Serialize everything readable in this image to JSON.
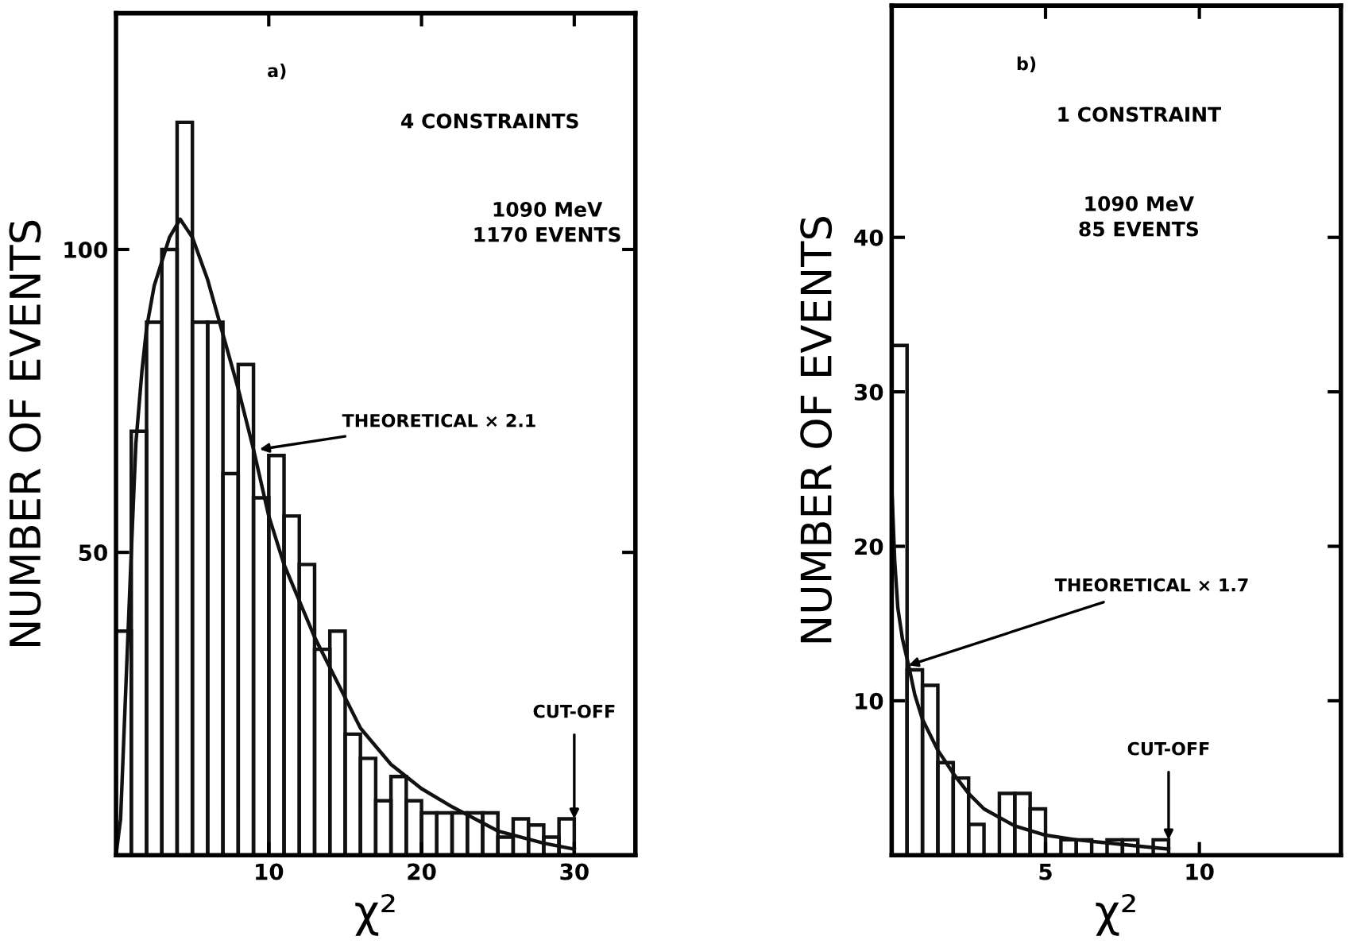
{
  "chart_data": [
    {
      "type": "histogram",
      "title": "a)",
      "xlabel": "χ²",
      "ylabel": "NUMBER OF EVENTS",
      "bins": [
        0,
        1,
        2,
        3,
        4,
        5,
        6,
        7,
        8,
        9,
        10,
        11,
        12,
        13,
        14,
        15,
        16,
        17,
        18,
        19,
        20,
        21,
        22,
        23,
        24,
        25,
        26,
        27,
        28,
        29,
        30
      ],
      "values": [
        37,
        70,
        88,
        100,
        121,
        88,
        88,
        63,
        81,
        59,
        66,
        56,
        48,
        34,
        37,
        20,
        16,
        9,
        13,
        9,
        7,
        7,
        7,
        7,
        7,
        3,
        6,
        5,
        3,
        6
      ],
      "color": "#111111",
      "series": [
        {
          "type": "line",
          "color": "#111111",
          "x": [
            0,
            0.3,
            0.6,
            1,
            1.3,
            1.7,
            2,
            2.5,
            3,
            3.5,
            4.2,
            5,
            6,
            7,
            8,
            9,
            10,
            11,
            12,
            13,
            14,
            15,
            16,
            18,
            20,
            22,
            25,
            28,
            30
          ],
          "values": [
            0,
            6,
            25,
            50,
            68,
            80,
            87,
            94,
            98,
            102,
            105,
            102,
            95,
            86,
            77,
            67,
            56,
            48,
            42,
            36,
            31,
            26,
            21,
            15,
            11,
            8,
            4,
            2,
            1
          ]
        }
      ],
      "annotations": [
        "4 CONSTRAINTS",
        "1090 MeV\n1170 EVENTS",
        {
          "text": "THEORETICAL × 2.1",
          "x": 9.4,
          "y": 67
        },
        {
          "text": "CUT-OFF",
          "x": 30,
          "y": 6
        }
      ],
      "xlim": [
        0,
        34
      ],
      "ylim": [
        0,
        139
      ],
      "xticks": [
        10,
        20,
        30
      ],
      "yticks": [
        50,
        100
      ],
      "grid": false,
      "legend": false
    },
    {
      "type": "histogram",
      "title": "b)",
      "xlabel": "χ²",
      "ylabel": "NUMBER OF EVENTS",
      "bins": [
        0,
        0.5,
        1,
        1.5,
        2,
        2.5,
        3,
        3.5,
        4,
        4.5,
        5,
        5.5,
        6,
        6.5,
        7,
        7.5,
        8,
        8.5,
        9
      ],
      "values": [
        33,
        12,
        11,
        6,
        5,
        2,
        0,
        4,
        4,
        3,
        0,
        1,
        1,
        0,
        1,
        1,
        0,
        1
      ],
      "color": "#111111",
      "series": [
        {
          "type": "line",
          "color": "#111111",
          "x": [
            0,
            0.1,
            0.2,
            0.35,
            0.55,
            0.75,
            1,
            1.5,
            2,
            2.5,
            3,
            4,
            5,
            6,
            7,
            8,
            9
          ],
          "values": [
            24,
            19,
            16,
            14,
            12.3,
            10.4,
            8.8,
            6.8,
            5.3,
            4,
            3,
            1.9,
            1.3,
            1,
            0.8,
            0.6,
            0.4
          ]
        }
      ],
      "annotations": [
        "1 CONSTRAINT",
        "1090 MeV\n85 EVENTS",
        {
          "text": "THEORETICAL × 1.7",
          "x": 0.55,
          "y": 12.3
        },
        {
          "text": "CUT-OFF",
          "x": 9,
          "y": 1
        }
      ],
      "xlim": [
        0,
        14.6
      ],
      "ylim": [
        0,
        55
      ],
      "xticks": [
        5,
        10
      ],
      "yticks": [
        10,
        20,
        30,
        40
      ],
      "grid": false,
      "legend": false
    }
  ]
}
